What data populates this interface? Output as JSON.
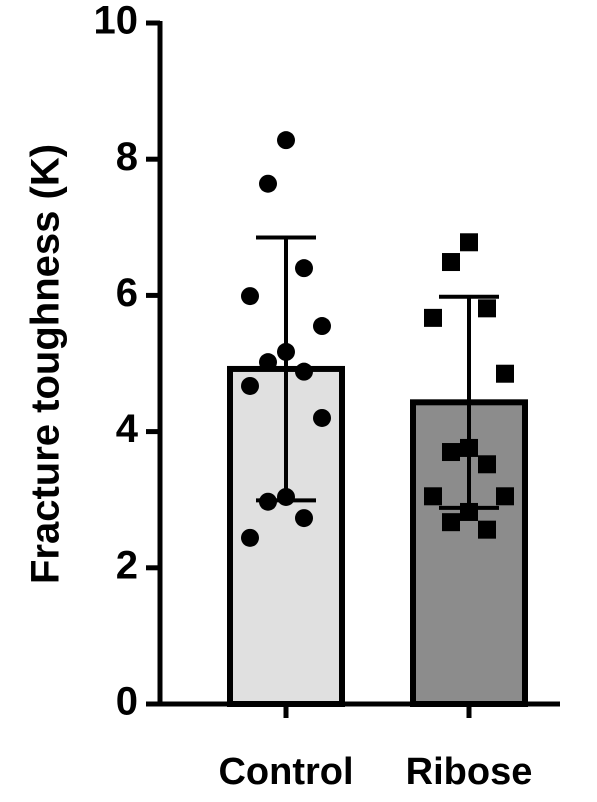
{
  "chart_data": {
    "type": "bar",
    "y_label": "Fracture toughness (K)",
    "categories": [
      "Control",
      "Ribose"
    ],
    "values": [
      4.92,
      4.43
    ],
    "errors": [
      1.93,
      1.55
    ],
    "colors": [
      "#e0e0e0",
      "#8c8c8c"
    ],
    "markers": [
      "circle",
      "square"
    ],
    "points": [
      [
        8.28,
        7.64,
        6.4,
        5.99,
        5.55,
        5.17,
        5.02,
        4.88,
        4.67,
        4.2,
        3.04,
        2.97,
        2.73,
        2.44
      ],
      [
        6.78,
        6.49,
        5.81,
        5.67,
        4.85,
        3.76,
        3.7,
        3.52,
        3.05,
        3.05,
        2.82,
        2.67,
        2.56
      ]
    ],
    "ylim": [
      0,
      10
    ],
    "yticks": [
      0,
      2,
      4,
      6,
      8,
      10
    ]
  }
}
